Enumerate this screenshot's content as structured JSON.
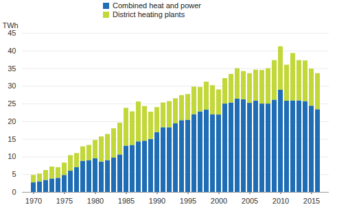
{
  "chart_data": {
    "type": "bar",
    "stacked": true,
    "grid": true,
    "legend": "top",
    "ylabel": "TWh",
    "x": [
      1970,
      1971,
      1972,
      1973,
      1974,
      1975,
      1976,
      1977,
      1978,
      1979,
      1980,
      1981,
      1982,
      1983,
      1984,
      1985,
      1986,
      1987,
      1988,
      1989,
      1990,
      1991,
      1992,
      1993,
      1994,
      1995,
      1996,
      1997,
      1998,
      1999,
      2000,
      2001,
      2002,
      2003,
      2004,
      2005,
      2006,
      2007,
      2008,
      2009,
      2010,
      2011,
      2012,
      2013,
      2014,
      2015,
      2016
    ],
    "xticks": [
      1970,
      1975,
      1980,
      1985,
      1990,
      1995,
      2000,
      2005,
      2010,
      2015
    ],
    "ylim": [
      0,
      45
    ],
    "yticks": [
      0,
      5,
      10,
      15,
      20,
      25,
      30,
      35,
      40,
      45
    ],
    "series": [
      {
        "name": "Combined heat and power",
        "color": "#1f6db5",
        "values": [
          2.7,
          3.0,
          3.4,
          3.8,
          4.0,
          4.8,
          6.0,
          7.0,
          8.8,
          9.0,
          9.5,
          8.6,
          9.0,
          9.7,
          10.6,
          13.1,
          13.3,
          14.3,
          14.5,
          15.0,
          16.9,
          18.3,
          18.3,
          19.4,
          20.3,
          20.4,
          22.0,
          22.8,
          23.3,
          22.0,
          21.9,
          25.0,
          25.3,
          26.4,
          26.2,
          25.2,
          25.8,
          25.0,
          25.0,
          26.1,
          28.9,
          25.8,
          25.9,
          25.9,
          25.7,
          24.4,
          23.4
        ]
      },
      {
        "name": "District heating plants",
        "color": "#c2d73a",
        "values": [
          2.1,
          2.2,
          2.8,
          3.4,
          3.0,
          3.5,
          4.4,
          4.0,
          4.1,
          4.3,
          5.2,
          7.1,
          7.4,
          8.3,
          9.0,
          10.7,
          9.5,
          11.3,
          9.8,
          7.7,
          7.1,
          7.0,
          7.4,
          7.1,
          7.1,
          7.3,
          7.8,
          6.9,
          7.9,
          8.2,
          7.1,
          7.2,
          8.1,
          8.6,
          8.0,
          8.4,
          8.8,
          9.5,
          10.0,
          11.2,
          12.3,
          10.2,
          13.4,
          11.4,
          11.5,
          10.5,
          10.2
        ]
      }
    ]
  }
}
